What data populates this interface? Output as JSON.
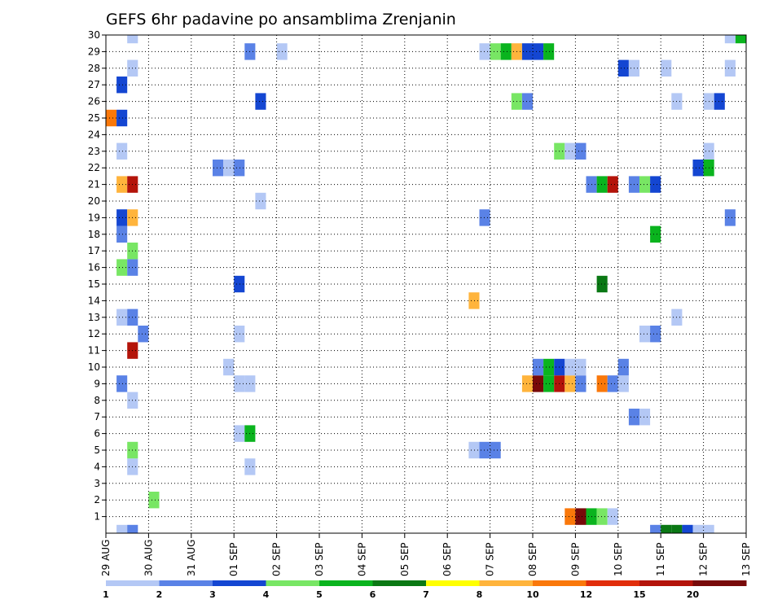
{
  "chart_data": {
    "type": "heatmap",
    "title": "GEFS 6hr padavine po ansamblima Zrenjanin",
    "xlabel": "",
    "ylabel": "",
    "x_tick_labels": [
      "29 AUG",
      "30 AUG",
      "31 AUG",
      "01 SEP",
      "02 SEP",
      "03 SEP",
      "04 SEP",
      "05 SEP",
      "06 SEP",
      "07 SEP",
      "08 SEP",
      "09 SEP",
      "10 SEP",
      "11 SEP",
      "12 SEP",
      "13 SEP"
    ],
    "y_tick_labels": [
      "1",
      "2",
      "3",
      "4",
      "5",
      "6",
      "7",
      "8",
      "9",
      "10",
      "11",
      "12",
      "13",
      "14",
      "15",
      "16",
      "17",
      "18",
      "19",
      "20",
      "21",
      "22",
      "23",
      "24",
      "25",
      "26",
      "27",
      "28",
      "29",
      "30"
    ],
    "x_unit": "6-hour step from 29 AUG 00Z",
    "xlim": [
      0,
      60
    ],
    "ylim": [
      0,
      30
    ],
    "grid": true,
    "legend_position": "bottom",
    "color_levels": [
      1,
      2,
      3,
      4,
      5,
      6,
      7,
      8,
      10,
      12,
      15,
      20
    ],
    "color_level_labels": [
      "1",
      "2",
      "3",
      "4",
      "5",
      "6",
      "7",
      "8",
      "10",
      "12",
      "15",
      "20"
    ],
    "colors": [
      "#b4c8f5",
      "#5a82e6",
      "#1446d2",
      "#78e664",
      "#0ab41e",
      "#0a7814",
      "#ffff00",
      "#ffb43c",
      "#fa780a",
      "#e12d0a",
      "#b4140a",
      "#780a0a"
    ],
    "cells": [
      {
        "x": 2,
        "y": 0,
        "v": 1
      },
      {
        "x": 3,
        "y": 0,
        "v": 2
      },
      {
        "x": 52,
        "y": 0,
        "v": 2
      },
      {
        "x": 53,
        "y": 0,
        "v": 6
      },
      {
        "x": 54,
        "y": 0,
        "v": 6
      },
      {
        "x": 55,
        "y": 0,
        "v": 3
      },
      {
        "x": 56,
        "y": 0,
        "v": 1
      },
      {
        "x": 57,
        "y": 0,
        "v": 1
      },
      {
        "x": 44,
        "y": 1,
        "v": 10
      },
      {
        "x": 45,
        "y": 1,
        "v": 20
      },
      {
        "x": 46,
        "y": 1,
        "v": 5
      },
      {
        "x": 47,
        "y": 1,
        "v": 4
      },
      {
        "x": 48,
        "y": 1,
        "v": 1
      },
      {
        "x": 5,
        "y": 2,
        "v": 4
      },
      {
        "x": 3,
        "y": 4,
        "v": 1
      },
      {
        "x": 14,
        "y": 4,
        "v": 1
      },
      {
        "x": 3,
        "y": 5,
        "v": 4
      },
      {
        "x": 35,
        "y": 5,
        "v": 1
      },
      {
        "x": 36,
        "y": 5,
        "v": 2
      },
      {
        "x": 37,
        "y": 5,
        "v": 2
      },
      {
        "x": 13,
        "y": 6,
        "v": 1
      },
      {
        "x": 14,
        "y": 6,
        "v": 5
      },
      {
        "x": 50,
        "y": 7,
        "v": 2
      },
      {
        "x": 51,
        "y": 7,
        "v": 1
      },
      {
        "x": 3,
        "y": 8,
        "v": 1
      },
      {
        "x": 2,
        "y": 9,
        "v": 2
      },
      {
        "x": 13,
        "y": 9,
        "v": 1
      },
      {
        "x": 14,
        "y": 9,
        "v": 1
      },
      {
        "x": 40,
        "y": 9,
        "v": 8
      },
      {
        "x": 41,
        "y": 9,
        "v": 20
      },
      {
        "x": 42,
        "y": 9,
        "v": 5
      },
      {
        "x": 43,
        "y": 9,
        "v": 15
      },
      {
        "x": 44,
        "y": 9,
        "v": 8
      },
      {
        "x": 45,
        "y": 9,
        "v": 2
      },
      {
        "x": 47,
        "y": 9,
        "v": 10
      },
      {
        "x": 48,
        "y": 9,
        "v": 2
      },
      {
        "x": 49,
        "y": 9,
        "v": 1
      },
      {
        "x": 12,
        "y": 10,
        "v": 1
      },
      {
        "x": 41,
        "y": 10,
        "v": 2
      },
      {
        "x": 42,
        "y": 10,
        "v": 5
      },
      {
        "x": 43,
        "y": 10,
        "v": 3
      },
      {
        "x": 44,
        "y": 10,
        "v": 1
      },
      {
        "x": 45,
        "y": 10,
        "v": 1
      },
      {
        "x": 49,
        "y": 10,
        "v": 2
      },
      {
        "x": 3,
        "y": 11,
        "v": 15
      },
      {
        "x": 4,
        "y": 12,
        "v": 2
      },
      {
        "x": 13,
        "y": 12,
        "v": 1
      },
      {
        "x": 51,
        "y": 12,
        "v": 1
      },
      {
        "x": 52,
        "y": 12,
        "v": 2
      },
      {
        "x": 2,
        "y": 13,
        "v": 1
      },
      {
        "x": 3,
        "y": 13,
        "v": 2
      },
      {
        "x": 54,
        "y": 13,
        "v": 1
      },
      {
        "x": 35,
        "y": 14,
        "v": 8
      },
      {
        "x": 13,
        "y": 15,
        "v": 3
      },
      {
        "x": 47,
        "y": 15,
        "v": 6
      },
      {
        "x": 2,
        "y": 16,
        "v": 4
      },
      {
        "x": 3,
        "y": 16,
        "v": 2
      },
      {
        "x": 3,
        "y": 17,
        "v": 4
      },
      {
        "x": 2,
        "y": 18,
        "v": 2
      },
      {
        "x": 52,
        "y": 18,
        "v": 5
      },
      {
        "x": 2,
        "y": 19,
        "v": 3
      },
      {
        "x": 3,
        "y": 19,
        "v": 8
      },
      {
        "x": 36,
        "y": 19,
        "v": 2
      },
      {
        "x": 59,
        "y": 19,
        "v": 2
      },
      {
        "x": 15,
        "y": 20,
        "v": 1
      },
      {
        "x": 2,
        "y": 21,
        "v": 8
      },
      {
        "x": 3,
        "y": 21,
        "v": 15
      },
      {
        "x": 46,
        "y": 21,
        "v": 2
      },
      {
        "x": 47,
        "y": 21,
        "v": 5
      },
      {
        "x": 48,
        "y": 21,
        "v": 15
      },
      {
        "x": 50,
        "y": 21,
        "v": 2
      },
      {
        "x": 51,
        "y": 21,
        "v": 4
      },
      {
        "x": 52,
        "y": 21,
        "v": 3
      },
      {
        "x": 11,
        "y": 22,
        "v": 2
      },
      {
        "x": 12,
        "y": 22,
        "v": 1
      },
      {
        "x": 13,
        "y": 22,
        "v": 2
      },
      {
        "x": 56,
        "y": 22,
        "v": 3
      },
      {
        "x": 57,
        "y": 22,
        "v": 5
      },
      {
        "x": 2,
        "y": 23,
        "v": 1
      },
      {
        "x": 43,
        "y": 23,
        "v": 4
      },
      {
        "x": 44,
        "y": 23,
        "v": 1
      },
      {
        "x": 45,
        "y": 23,
        "v": 2
      },
      {
        "x": 57,
        "y": 23,
        "v": 1
      },
      {
        "x": 1,
        "y": 25,
        "v": 10
      },
      {
        "x": 2,
        "y": 25,
        "v": 3
      },
      {
        "x": 15,
        "y": 26,
        "v": 3
      },
      {
        "x": 39,
        "y": 26,
        "v": 4
      },
      {
        "x": 40,
        "y": 26,
        "v": 2
      },
      {
        "x": 54,
        "y": 26,
        "v": 1
      },
      {
        "x": 57,
        "y": 26,
        "v": 1
      },
      {
        "x": 58,
        "y": 26,
        "v": 3
      },
      {
        "x": 2,
        "y": 27,
        "v": 3
      },
      {
        "x": 3,
        "y": 28,
        "v": 1
      },
      {
        "x": 49,
        "y": 28,
        "v": 3
      },
      {
        "x": 50,
        "y": 28,
        "v": 1
      },
      {
        "x": 53,
        "y": 28,
        "v": 1
      },
      {
        "x": 59,
        "y": 28,
        "v": 1
      },
      {
        "x": 14,
        "y": 29,
        "v": 2
      },
      {
        "x": 17,
        "y": 29,
        "v": 1
      },
      {
        "x": 36,
        "y": 29,
        "v": 1
      },
      {
        "x": 37,
        "y": 29,
        "v": 4
      },
      {
        "x": 38,
        "y": 29,
        "v": 5
      },
      {
        "x": 39,
        "y": 29,
        "v": 8
      },
      {
        "x": 40,
        "y": 29,
        "v": 3
      },
      {
        "x": 41,
        "y": 29,
        "v": 3
      },
      {
        "x": 42,
        "y": 29,
        "v": 5
      },
      {
        "x": 3,
        "y": 30,
        "v": 1
      },
      {
        "x": 59,
        "y": 30,
        "v": 1
      },
      {
        "x": 60,
        "y": 30,
        "v": 5
      }
    ]
  }
}
